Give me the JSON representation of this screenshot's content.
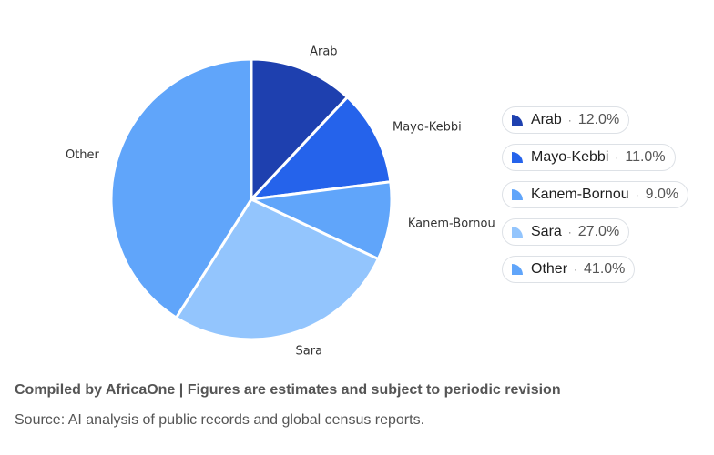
{
  "chart_data": {
    "type": "pie",
    "categories": [
      "Arab",
      "Mayo-Kebbi",
      "Kanem-Bornou",
      "Sara",
      "Other"
    ],
    "values": [
      12.0,
      11.0,
      9.0,
      27.0,
      41.0
    ],
    "unit": "%",
    "colors": [
      "#1e40af",
      "#2563eb",
      "#60a5fa",
      "#93c5fd",
      "#60a5fa"
    ],
    "legend": {
      "placement": "right",
      "items": [
        {
          "name": "Arab",
          "value": "12.0%"
        },
        {
          "name": "Mayo-Kebbi",
          "value": "11.0%"
        },
        {
          "name": "Kanem-Bornou",
          "value": "9.0%"
        },
        {
          "name": "Sara",
          "value": "27.0%"
        },
        {
          "name": "Other",
          "value": "41.0%"
        }
      ],
      "separator": "·"
    }
  },
  "footer": {
    "title": "Compiled by AfricaOne | Figures are estimates and subject to periodic revision",
    "source": "Source: AI analysis of public records and global census reports."
  }
}
